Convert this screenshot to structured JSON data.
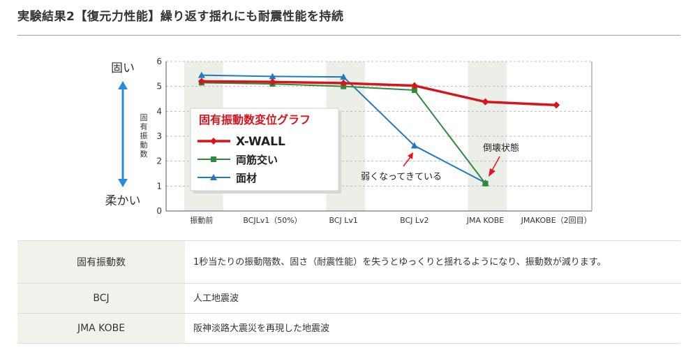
{
  "heading": "実験結果2【復元力性能】繰り返す揺れにも耐震性能を持続",
  "chart_data": {
    "type": "line",
    "ylabel": "固有振動数",
    "ylim": [
      0,
      6
    ],
    "yticks": [
      "0",
      "1",
      "2",
      "3",
      "4",
      "5",
      "6"
    ],
    "categories": [
      "振動前",
      "BCJLv1（50%）",
      "BCJ  Lv1",
      "BCJ  Lv2",
      "JMA  KOBE",
      "JMAKOBE（2回目）"
    ],
    "grid": true,
    "scale_top": "固い",
    "scale_bottom": "柔かい",
    "legend_title": "固有振動数変位グラフ",
    "legend_position": "center-left",
    "series": [
      {
        "name": "X-WALL",
        "color": "#d7141c",
        "marker": "diamond",
        "values": [
          5.2,
          5.18,
          5.13,
          5.03,
          4.38,
          4.25
        ]
      },
      {
        "name": "両筋交い",
        "color": "#2f8a3a",
        "marker": "square",
        "values": [
          5.15,
          5.1,
          5.0,
          4.85,
          1.1,
          null
        ]
      },
      {
        "name": "面材",
        "color": "#1f7ac2",
        "marker": "triangle",
        "values": [
          5.45,
          5.4,
          5.38,
          2.62,
          1.13,
          null
        ]
      }
    ],
    "annotations": [
      {
        "text": "倒壊状態",
        "category": 4,
        "value": 1.1
      },
      {
        "text": "弱くなってきている",
        "category": 3,
        "value": 2.62
      }
    ],
    "colors": {
      "band": "#eceee8",
      "grid": "#b9b9b9",
      "arrow": "#2e8bcf",
      "annotation_arrow": "#e5141b"
    }
  },
  "table": {
    "rows": [
      {
        "key": "固有振動数",
        "value": "1秒当たりの振動階数、固さ（耐震性能）を失うとゆっくりと揺れるようになり、振動数が減ります。"
      },
      {
        "key": "BCJ",
        "value": "人工地震波"
      },
      {
        "key": "JMA KOBE",
        "value": "阪神淡路大震災を再現した地震波"
      }
    ]
  }
}
